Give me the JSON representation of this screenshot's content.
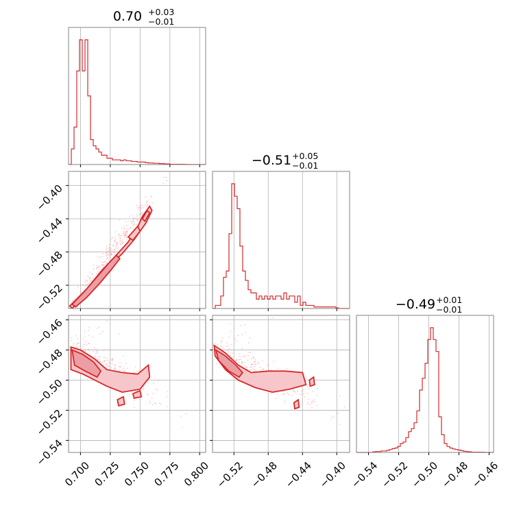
{
  "chart_data": {
    "type": "corner",
    "color": "#d62728",
    "parameters": [
      {
        "title_value": "0.70",
        "title_upper": "+0.03",
        "title_lower": "−0.01",
        "range": [
          0.69,
          0.805
        ],
        "ticks": [
          0.7,
          0.725,
          0.75,
          0.775,
          0.8
        ],
        "tick_labels": [
          "0.700",
          "0.725",
          "0.750",
          "0.775",
          "0.800"
        ],
        "histogram": {
          "start": 0.69,
          "width": 0.0023,
          "counts": [
            0,
            5,
            12,
            30,
            40,
            30,
            40,
            22,
            8,
            6,
            5,
            4,
            3,
            3,
            2,
            2,
            1.5,
            1.5,
            1.5,
            1.2,
            1.5,
            1.2,
            1.2,
            1,
            1,
            0.8,
            0.8,
            0.8,
            0.6,
            0.5,
            0.5,
            0.4,
            0.4,
            0.3,
            0.3,
            0.2,
            0.2,
            0.1,
            0.1,
            0.1,
            0.1,
            0.1,
            0.05,
            0,
            0,
            0,
            0,
            0,
            0,
            0
          ]
        }
      },
      {
        "title_value": "−0.51",
        "title_upper": "+0.05",
        "title_lower": "−0.01",
        "range": [
          -0.545,
          -0.385
        ],
        "ticks": [
          -0.52,
          -0.48,
          -0.44,
          -0.4
        ],
        "tick_labels": [
          "−0.52",
          "−0.48",
          "−0.44",
          "−0.40"
        ],
        "histogram": {
          "start": -0.545,
          "width": 0.0032,
          "counts": [
            0,
            1,
            1,
            4,
            10,
            12,
            24,
            40,
            36,
            32,
            20,
            12,
            9,
            6,
            5,
            5,
            3,
            4,
            3,
            4,
            3,
            4,
            3,
            4,
            4,
            3,
            5,
            3,
            4,
            4,
            2,
            4,
            1,
            2,
            1,
            1,
            1,
            0.5,
            0.5,
            0.5,
            0.5,
            0.5,
            0.5,
            0.5,
            0.5,
            0.2,
            0,
            0,
            0,
            0
          ]
        }
      },
      {
        "title_value": "−0.49",
        "title_upper": "+0.01",
        "title_lower": "−0.01",
        "range": [
          -0.548,
          -0.457
        ],
        "ticks": [
          -0.54,
          -0.52,
          -0.5,
          -0.48,
          -0.46
        ],
        "tick_labels": [
          "−0.54",
          "−0.52",
          "−0.50",
          "−0.48",
          "−0.46"
        ],
        "histogram": {
          "start": -0.548,
          "width": 0.00182,
          "counts": [
            0,
            0,
            0,
            0,
            0,
            0,
            0.2,
            0.3,
            0.3,
            0.5,
            0.5,
            0.7,
            1,
            1.3,
            1.5,
            2,
            3,
            3.5,
            5,
            7,
            8,
            10,
            14,
            21,
            25,
            30,
            38,
            42,
            38,
            34,
            12,
            6,
            3,
            2,
            1.5,
            1.2,
            1,
            0.8,
            0.6,
            0.4,
            0.3,
            0.2,
            0.1,
            0.1,
            0.1,
            0.1,
            0.05,
            0,
            0,
            0
          ]
        }
      }
    ],
    "pairs": [
      {
        "x_param": 0,
        "y_param": 1,
        "samples": {
          "center": [
            0.728,
            -0.475
          ],
          "slope": 1.95,
          "along_sd": 0.016,
          "cross_sd": 0.0055,
          "count": 260,
          "x_min": 0.692,
          "x_max": 0.775
        },
        "contours": [
          {
            "level": "outer",
            "polygon": [
              [
                0.691,
                -0.545
              ],
              [
                0.705,
                -0.525
              ],
              [
                0.718,
                -0.502
              ],
              [
                0.728,
                -0.487
              ],
              [
                0.74,
                -0.468
              ],
              [
                0.748,
                -0.45
              ],
              [
                0.752,
                -0.437
              ],
              [
                0.758,
                -0.425
              ],
              [
                0.76,
                -0.43
              ],
              [
                0.755,
                -0.445
              ],
              [
                0.745,
                -0.465
              ],
              [
                0.735,
                -0.482
              ],
              [
                0.722,
                -0.5
              ],
              [
                0.71,
                -0.52
              ],
              [
                0.7,
                -0.538
              ],
              [
                0.693,
                -0.548
              ]
            ]
          },
          {
            "level": "inner",
            "polygon": [
              [
                0.693,
                -0.543
              ],
              [
                0.703,
                -0.528
              ],
              [
                0.715,
                -0.508
              ],
              [
                0.724,
                -0.493
              ],
              [
                0.73,
                -0.484
              ],
              [
                0.733,
                -0.488
              ],
              [
                0.726,
                -0.501
              ],
              [
                0.716,
                -0.518
              ],
              [
                0.705,
                -0.535
              ],
              [
                0.696,
                -0.546
              ]
            ]
          },
          {
            "level": "island",
            "polygon": [
              [
                0.74,
                -0.462
              ],
              [
                0.748,
                -0.449
              ],
              [
                0.75,
                -0.455
              ],
              [
                0.744,
                -0.466
              ]
            ]
          },
          {
            "level": "island",
            "polygon": [
              [
                0.752,
                -0.44
              ],
              [
                0.756,
                -0.43
              ],
              [
                0.758,
                -0.433
              ],
              [
                0.754,
                -0.443
              ]
            ]
          }
        ]
      },
      {
        "x_param": 0,
        "y_param": 2,
        "samples": {
          "center": [
            0.722,
            -0.492
          ],
          "slope": -0.45,
          "along_sd": 0.02,
          "cross_sd": 0.0055,
          "count": 300,
          "x_min": 0.692,
          "x_max": 0.775
        },
        "contours": [
          {
            "level": "outer",
            "polygon": [
              [
                0.692,
                -0.478
              ],
              [
                0.7,
                -0.48
              ],
              [
                0.712,
                -0.486
              ],
              [
                0.722,
                -0.493
              ],
              [
                0.735,
                -0.495
              ],
              [
                0.748,
                -0.496
              ],
              [
                0.757,
                -0.49
              ],
              [
                0.758,
                -0.498
              ],
              [
                0.75,
                -0.506
              ],
              [
                0.735,
                -0.508
              ],
              [
                0.722,
                -0.504
              ],
              [
                0.712,
                -0.5
              ],
              [
                0.702,
                -0.496
              ],
              [
                0.692,
                -0.493
              ]
            ]
          },
          {
            "level": "inner",
            "polygon": [
              [
                0.693,
                -0.48
              ],
              [
                0.702,
                -0.483
              ],
              [
                0.711,
                -0.488
              ],
              [
                0.717,
                -0.494
              ],
              [
                0.714,
                -0.498
              ],
              [
                0.704,
                -0.494
              ],
              [
                0.695,
                -0.49
              ]
            ]
          },
          {
            "level": "island",
            "polygon": [
              [
                0.744,
                -0.509
              ],
              [
                0.75,
                -0.507
              ],
              [
                0.751,
                -0.511
              ],
              [
                0.745,
                -0.512
              ]
            ]
          },
          {
            "level": "island",
            "polygon": [
              [
                0.731,
                -0.513
              ],
              [
                0.736,
                -0.511
              ],
              [
                0.737,
                -0.516
              ],
              [
                0.732,
                -0.517
              ]
            ]
          }
        ]
      },
      {
        "x_param": 1,
        "y_param": 2,
        "samples": {
          "center": [
            -0.49,
            -0.495
          ],
          "slope": -0.28,
          "along_sd": 0.035,
          "cross_sd": 0.005,
          "count": 300,
          "x_min": -0.543,
          "x_max": -0.41
        },
        "contours": [
          {
            "level": "outer",
            "polygon": [
              [
                -0.543,
                -0.477
              ],
              [
                -0.53,
                -0.482
              ],
              [
                -0.515,
                -0.49
              ],
              [
                -0.5,
                -0.495
              ],
              [
                -0.48,
                -0.494
              ],
              [
                -0.46,
                -0.494
              ],
              [
                -0.44,
                -0.495
              ],
              [
                -0.436,
                -0.503
              ],
              [
                -0.455,
                -0.506
              ],
              [
                -0.475,
                -0.508
              ],
              [
                -0.495,
                -0.505
              ],
              [
                -0.515,
                -0.5
              ],
              [
                -0.53,
                -0.493
              ],
              [
                -0.542,
                -0.484
              ]
            ]
          },
          {
            "level": "inner",
            "polygon": [
              [
                -0.541,
                -0.48
              ],
              [
                -0.53,
                -0.484
              ],
              [
                -0.518,
                -0.49
              ],
              [
                -0.51,
                -0.495
              ],
              [
                -0.514,
                -0.498
              ],
              [
                -0.526,
                -0.494
              ],
              [
                -0.538,
                -0.487
              ]
            ]
          },
          {
            "level": "island",
            "polygon": [
              [
                -0.432,
                -0.5
              ],
              [
                -0.427,
                -0.498
              ],
              [
                -0.426,
                -0.503
              ],
              [
                -0.431,
                -0.504
              ]
            ]
          },
          {
            "level": "island",
            "polygon": [
              [
                -0.45,
                -0.515
              ],
              [
                -0.445,
                -0.513
              ],
              [
                -0.444,
                -0.518
              ],
              [
                -0.449,
                -0.519
              ]
            ]
          }
        ]
      }
    ],
    "grid": true
  }
}
